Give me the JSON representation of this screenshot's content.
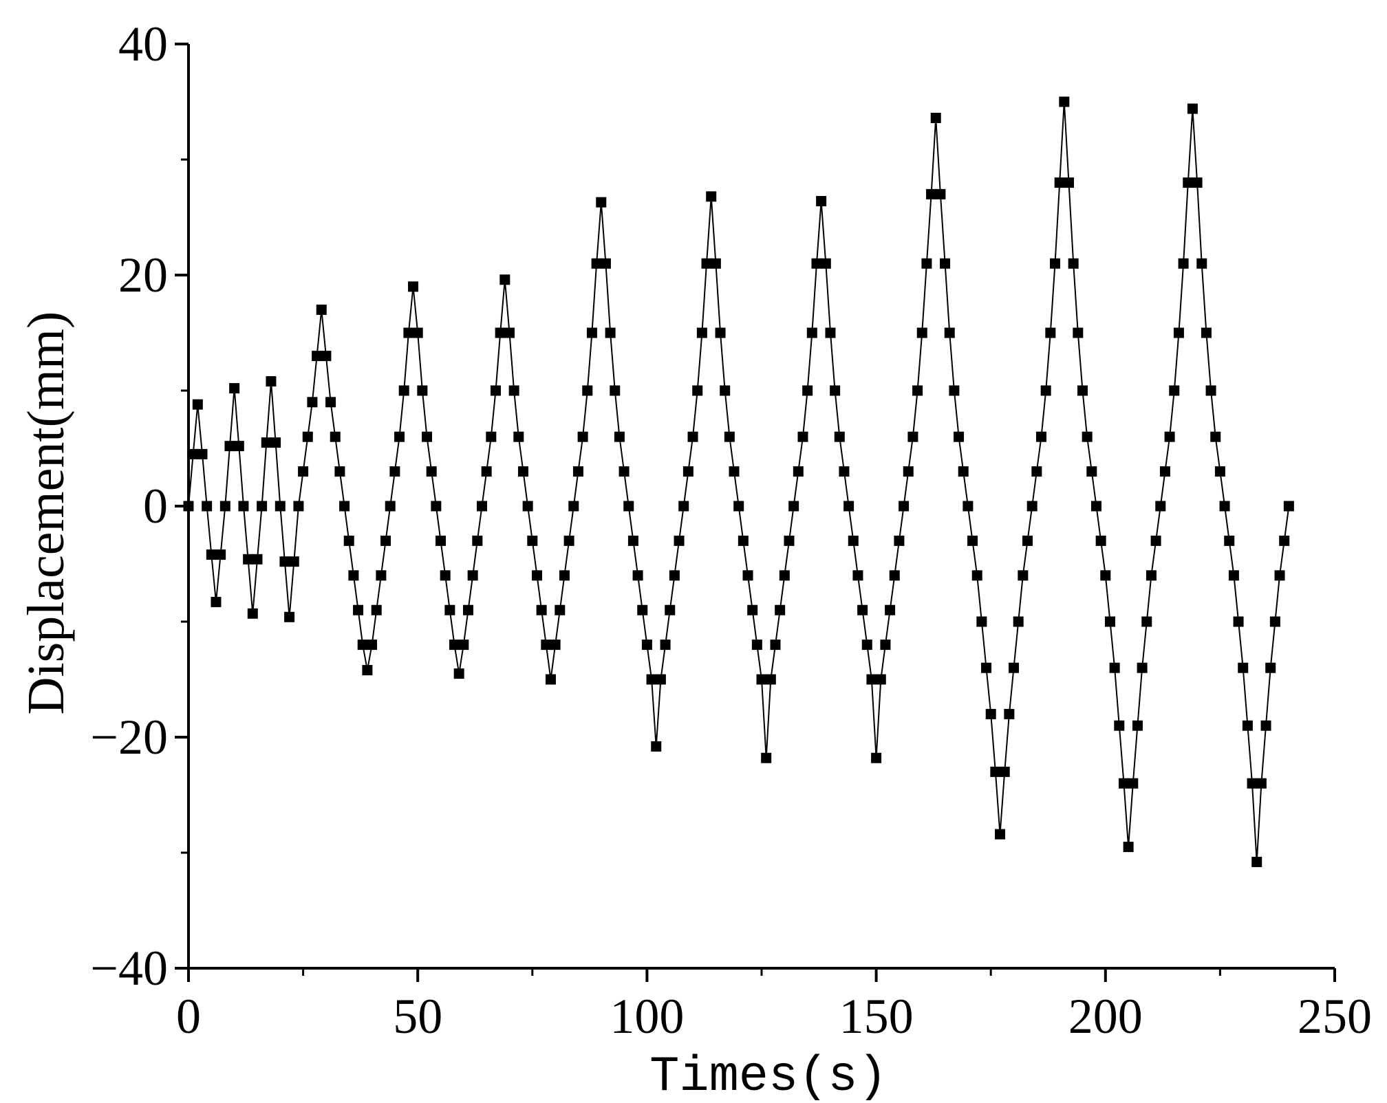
{
  "chart_data": {
    "type": "line",
    "title": "",
    "xlabel": "Times(s)",
    "ylabel": "Displacement(mm)",
    "xlim": [
      0,
      250
    ],
    "ylim": [
      -40,
      40
    ],
    "x_ticks": [
      0,
      50,
      100,
      150,
      200,
      250
    ],
    "y_ticks": [
      -40,
      -20,
      0,
      20,
      40
    ],
    "x_tick_labels": [
      "0",
      "50",
      "100",
      "150",
      "200",
      "250"
    ],
    "y_tick_labels": [
      "−40",
      "−20",
      "0",
      "20",
      "40"
    ],
    "grid": false,
    "legend": "none",
    "marker": "square",
    "color": "#000000",
    "series": [
      {
        "x": [
          0,
          1,
          2,
          3,
          4,
          5,
          6,
          7,
          8,
          9,
          10,
          11,
          12,
          13,
          14,
          15,
          16,
          17,
          18,
          19,
          20,
          21,
          22,
          23,
          24,
          25,
          26,
          27,
          28,
          29,
          30,
          31,
          32,
          33,
          34,
          35,
          36,
          37,
          38,
          39,
          40,
          41,
          42,
          43,
          44,
          45,
          46,
          47,
          48,
          49,
          50,
          51,
          52,
          53,
          54,
          55,
          56,
          57,
          58,
          59,
          60,
          61,
          62,
          63,
          64,
          65,
          66,
          67,
          68,
          69,
          70,
          71,
          72,
          73,
          74,
          75,
          76,
          77,
          78,
          79,
          80,
          81,
          82,
          83,
          84,
          85,
          86,
          87,
          88,
          89,
          90,
          91,
          92,
          93,
          94,
          95,
          96,
          97,
          98,
          99,
          100,
          101,
          102,
          103,
          104,
          105,
          106,
          107,
          108,
          109,
          110,
          111,
          112,
          113,
          114,
          115,
          116,
          117,
          118,
          119,
          120,
          121,
          122,
          123,
          124,
          125,
          126,
          127,
          128,
          129,
          130,
          131,
          132,
          133,
          134,
          135,
          136,
          137,
          138,
          139,
          140,
          141,
          142,
          143,
          144,
          145,
          146,
          147,
          148,
          149,
          150,
          151,
          152,
          153,
          154,
          155,
          156,
          157,
          158,
          159,
          160,
          161,
          162,
          163,
          164,
          165,
          166,
          167,
          168,
          169,
          170,
          171,
          172,
          173,
          174,
          175,
          176,
          177,
          178,
          179,
          180,
          181,
          182,
          183,
          184,
          185,
          186,
          187,
          188,
          189,
          190,
          191,
          192,
          193,
          194,
          195,
          196,
          197,
          198,
          199,
          200,
          201,
          202,
          203,
          204,
          205,
          206,
          207,
          208,
          209,
          210,
          211,
          212,
          213,
          214,
          215,
          216,
          217,
          218,
          219,
          220,
          221,
          222,
          223,
          224,
          225,
          226,
          227,
          228,
          229,
          230,
          231,
          232,
          233,
          234,
          235,
          236,
          237,
          238,
          239,
          240
        ],
        "y": [
          0,
          4.5,
          8.8,
          4.5,
          0,
          -4.2,
          -8.3,
          -4.2,
          0,
          5.2,
          10.2,
          5.2,
          0,
          -4.6,
          -9.3,
          -4.6,
          0,
          5.5,
          10.8,
          5.5,
          0,
          -4.8,
          -9.6,
          -4.8,
          0,
          3,
          6,
          9,
          13,
          17,
          13,
          9,
          6,
          3,
          0,
          -3,
          -6,
          -9,
          -12,
          -14.2,
          -12,
          -9,
          -6,
          -3,
          0,
          3,
          6,
          10,
          15,
          19,
          15,
          10,
          6,
          3,
          0,
          -3,
          -6,
          -9,
          -12,
          -14.5,
          -12,
          -9,
          -6,
          -3,
          0,
          3,
          6,
          10,
          15,
          19.6,
          15,
          10,
          6,
          3,
          0,
          -3,
          -6,
          -9,
          -12,
          -15,
          -12,
          -9,
          -6,
          -3,
          0,
          3,
          6,
          10,
          15,
          21,
          26.3,
          21,
          15,
          10,
          6,
          3,
          0,
          -3,
          -6,
          -9,
          -12,
          -15,
          -20.8,
          -15,
          -12,
          -9,
          -6,
          -3,
          0,
          3,
          6,
          10,
          15,
          21,
          26.8,
          21,
          15,
          10,
          6,
          3,
          0,
          -3,
          -6,
          -9,
          -12,
          -15,
          -21.8,
          -15,
          -12,
          -9,
          -6,
          -3,
          0,
          3,
          6,
          10,
          15,
          21,
          26.4,
          21,
          15,
          10,
          6,
          3,
          0,
          -3,
          -6,
          -9,
          -12,
          -15,
          -21.8,
          -15,
          -12,
          -9,
          -6,
          -3,
          0,
          3,
          6,
          10,
          15,
          21,
          27,
          33.6,
          27,
          21,
          15,
          10,
          6,
          3,
          0,
          -3,
          -6,
          -10,
          -14,
          -18,
          -23,
          -28.4,
          -23,
          -18,
          -14,
          -10,
          -6,
          -3,
          0,
          3,
          6,
          10,
          15,
          21,
          28,
          35,
          28,
          21,
          15,
          10,
          6,
          3,
          0,
          -3,
          -6,
          -10,
          -14,
          -19,
          -24,
          -29.5,
          -24,
          -19,
          -14,
          -10,
          -6,
          -3,
          0,
          3,
          6,
          10,
          15,
          21,
          28,
          34.4,
          28,
          21,
          15,
          10,
          6,
          3,
          0,
          -3,
          -6,
          -10,
          -14,
          -19,
          -24,
          -30.8,
          -24,
          -19,
          -14,
          -10,
          -6,
          -3,
          0
        ]
      }
    ]
  }
}
